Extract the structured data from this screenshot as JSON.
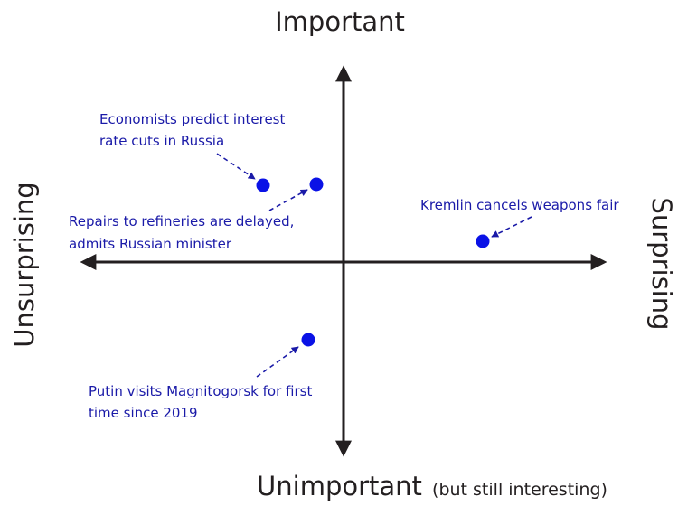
{
  "axes": {
    "top": "Important",
    "bottom_main": "Unimportant",
    "bottom_note": "(but still interesting)",
    "left": "Unsurprising",
    "right": "Surprising"
  },
  "colors": {
    "axis": "#231f20",
    "point": "#0a12e6",
    "annotation": "#1a1aa8"
  },
  "points": [
    {
      "id": "economists",
      "lines": [
        "Economists predict interest",
        "rate cuts in Russia"
      ]
    },
    {
      "id": "refineries",
      "lines": [
        "Repairs to refineries are delayed,",
        "admits Russian minister"
      ]
    },
    {
      "id": "kremlin",
      "lines": [
        "Kremlin cancels weapons fair"
      ]
    },
    {
      "id": "putin",
      "lines": [
        "Putin visits Magnitogorsk for first",
        "time since 2019"
      ]
    }
  ]
}
